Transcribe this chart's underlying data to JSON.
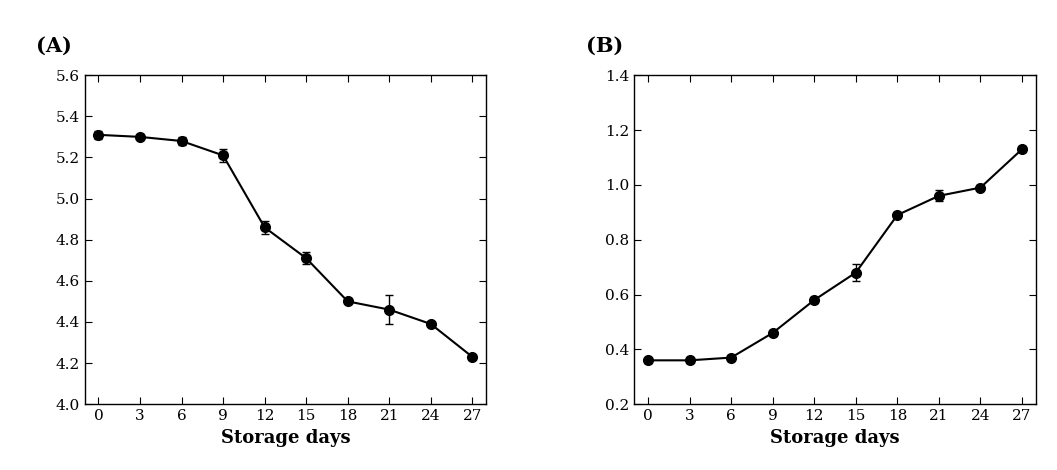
{
  "x": [
    0,
    3,
    6,
    9,
    12,
    15,
    18,
    21,
    24,
    27
  ],
  "pH_y": [
    5.31,
    5.3,
    5.28,
    5.21,
    4.86,
    4.71,
    4.5,
    4.46,
    4.39,
    4.23
  ],
  "pH_err": [
    0.02,
    0.01,
    0.02,
    0.03,
    0.03,
    0.03,
    0.01,
    0.07,
    0.01,
    0.01
  ],
  "pH_ylim": [
    4.0,
    5.6
  ],
  "pH_yticks": [
    4.0,
    4.2,
    4.4,
    4.6,
    4.8,
    5.0,
    5.2,
    5.4,
    5.6
  ],
  "acid_y": [
    0.36,
    0.36,
    0.37,
    0.46,
    0.58,
    0.68,
    0.89,
    0.96,
    0.99,
    1.13
  ],
  "acid_err": [
    0.01,
    0.01,
    0.01,
    0.01,
    0.01,
    0.03,
    0.01,
    0.02,
    0.01,
    0.01
  ],
  "acid_ylim": [
    0.2,
    1.4
  ],
  "acid_yticks": [
    0.2,
    0.4,
    0.6,
    0.8,
    1.0,
    1.2,
    1.4
  ],
  "xlabel": "Storage days",
  "label_A": "(A)",
  "label_B": "(B)",
  "xticks": [
    0,
    3,
    6,
    9,
    12,
    15,
    18,
    21,
    24,
    27
  ],
  "line_color": "#000000",
  "marker": "o",
  "markersize": 7,
  "capsize": 3,
  "linewidth": 1.5,
  "xlabel_fontsize": 13,
  "tick_fontsize": 11,
  "panel_label_fontsize": 15
}
